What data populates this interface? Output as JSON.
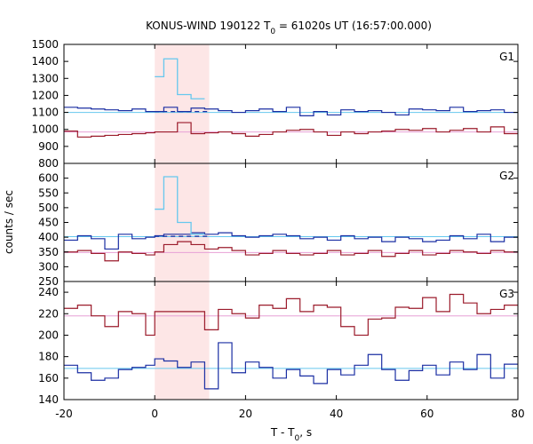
{
  "chart_data": {
    "type": "step-line",
    "title_main": "KONUS-WIND 190122 T",
    "title_sub": "0",
    "title_rest": " = 61020s UT (16:57:00.000)",
    "xlabel_main": "T - T",
    "xlabel_sub": "0",
    "xlabel_rest": ", s",
    "ylabel": "counts / sec",
    "xlim": [
      -20,
      80
    ],
    "xticks": [
      -20,
      0,
      20,
      40,
      60,
      80
    ],
    "highlight": {
      "x0": 0,
      "x1": 12,
      "color": "#fde6e6"
    },
    "panels": [
      {
        "name": "G1",
        "ylim": [
          800,
          1500
        ],
        "yticks": [
          800,
          900,
          1000,
          1100,
          1200,
          1300,
          1400,
          1500
        ],
        "bin_edges": [
          -20,
          -17,
          -14,
          -11,
          -8,
          -5,
          -2,
          0,
          2,
          5,
          8,
          11,
          14,
          17,
          20,
          23,
          26,
          29,
          32,
          35,
          38,
          41,
          44,
          47,
          50,
          53,
          56,
          59,
          62,
          65,
          68,
          71,
          74,
          77,
          80
        ],
        "series": [
          {
            "color": "#1b2fa3",
            "values": [
              1130,
              1125,
              1120,
              1115,
              1110,
              1120,
              1105,
              1105,
              1130,
              1105,
              1125,
              1120,
              1110,
              1100,
              1110,
              1120,
              1105,
              1130,
              1080,
              1105,
              1085,
              1115,
              1105,
              1110,
              1100,
              1085,
              1120,
              1115,
              1110,
              1130,
              1105,
              1110,
              1115,
              1100
            ]
          },
          {
            "color": "#9b1b2b",
            "values": [
              990,
              955,
              960,
              965,
              970,
              975,
              980,
              985,
              985,
              1040,
              975,
              980,
              985,
              975,
              960,
              970,
              985,
              995,
              1000,
              985,
              965,
              985,
              975,
              985,
              990,
              1000,
              995,
              1005,
              985,
              995,
              1005,
              985,
              1015,
              975
            ]
          }
        ],
        "burst": {
          "color": "#66c8ee",
          "bin_edges": [
            0,
            2,
            5,
            8,
            11
          ],
          "values": [
            1310,
            1415,
            1205,
            1180
          ]
        },
        "background": [
          {
            "color": "#66c8ee",
            "value": 1100
          },
          {
            "color": "#e7a0d6",
            "value": 985
          }
        ],
        "dashed_bg": {
          "color": "#1b2fa3",
          "x0": 0,
          "x1": 12,
          "value": 1105
        }
      },
      {
        "name": "G2",
        "ylim": [
          250,
          650
        ],
        "yticks": [
          250,
          300,
          350,
          400,
          450,
          500,
          550,
          600
        ],
        "bin_edges": [
          -20,
          -17,
          -14,
          -11,
          -8,
          -5,
          -2,
          0,
          2,
          5,
          8,
          11,
          14,
          17,
          20,
          23,
          26,
          29,
          32,
          35,
          38,
          41,
          44,
          47,
          50,
          53,
          56,
          59,
          62,
          65,
          68,
          71,
          74,
          77,
          80
        ],
        "series": [
          {
            "color": "#1b2fa3",
            "values": [
              390,
              405,
              395,
              360,
              410,
              395,
              400,
              405,
              410,
              410,
              415,
              410,
              415,
              405,
              400,
              405,
              410,
              405,
              395,
              400,
              390,
              405,
              395,
              400,
              385,
              400,
              395,
              385,
              390,
              405,
              395,
              410,
              385,
              400
            ]
          },
          {
            "color": "#9b1b2b",
            "values": [
              350,
              355,
              345,
              320,
              350,
              345,
              340,
              350,
              375,
              385,
              375,
              360,
              365,
              355,
              340,
              345,
              355,
              345,
              340,
              345,
              355,
              340,
              345,
              355,
              335,
              345,
              355,
              340,
              345,
              355,
              350,
              345,
              355,
              350
            ]
          }
        ],
        "burst": {
          "color": "#66c8ee",
          "bin_edges": [
            0,
            2,
            5,
            8,
            11
          ],
          "values": [
            495,
            605,
            450,
            410
          ]
        },
        "background": [
          {
            "color": "#66c8ee",
            "value": 402
          },
          {
            "color": "#e7a0d6",
            "value": 348
          }
        ],
        "dashed_bg": {
          "color": "#1b2fa3",
          "x0": 0,
          "x1": 12,
          "value": 403
        }
      },
      {
        "name": "G3",
        "ylim": [
          140,
          250
        ],
        "yticks": [
          140,
          160,
          180,
          200,
          220,
          240
        ],
        "bin_edges": [
          -20,
          -17,
          -14,
          -11,
          -8,
          -5,
          -2,
          0,
          2,
          5,
          8,
          11,
          14,
          17,
          20,
          23,
          26,
          29,
          32,
          35,
          38,
          41,
          44,
          47,
          50,
          53,
          56,
          59,
          62,
          65,
          68,
          71,
          74,
          77,
          80
        ],
        "series": [
          {
            "color": "#1b2fa3",
            "values": [
              172,
              165,
              158,
              160,
              168,
              170,
              172,
              178,
              176,
              170,
              175,
              150,
              193,
              165,
              175,
              170,
              160,
              168,
              162,
              155,
              168,
              163,
              172,
              182,
              168,
              158,
              167,
              172,
              163,
              175,
              168,
              182,
              160,
              173
            ]
          },
          {
            "color": "#9b1b2b",
            "values": [
              225,
              228,
              218,
              208,
              222,
              220,
              200,
              222,
              222,
              222,
              222,
              205,
              224,
              220,
              216,
              228,
              225,
              234,
              222,
              228,
              226,
              208,
              200,
              215,
              216,
              226,
              225,
              235,
              222,
              238,
              230,
              220,
              224,
              228
            ]
          }
        ],
        "background": [
          {
            "color": "#66c8ee",
            "value": 169
          },
          {
            "color": "#e7a0d6",
            "value": 218
          }
        ]
      }
    ]
  }
}
